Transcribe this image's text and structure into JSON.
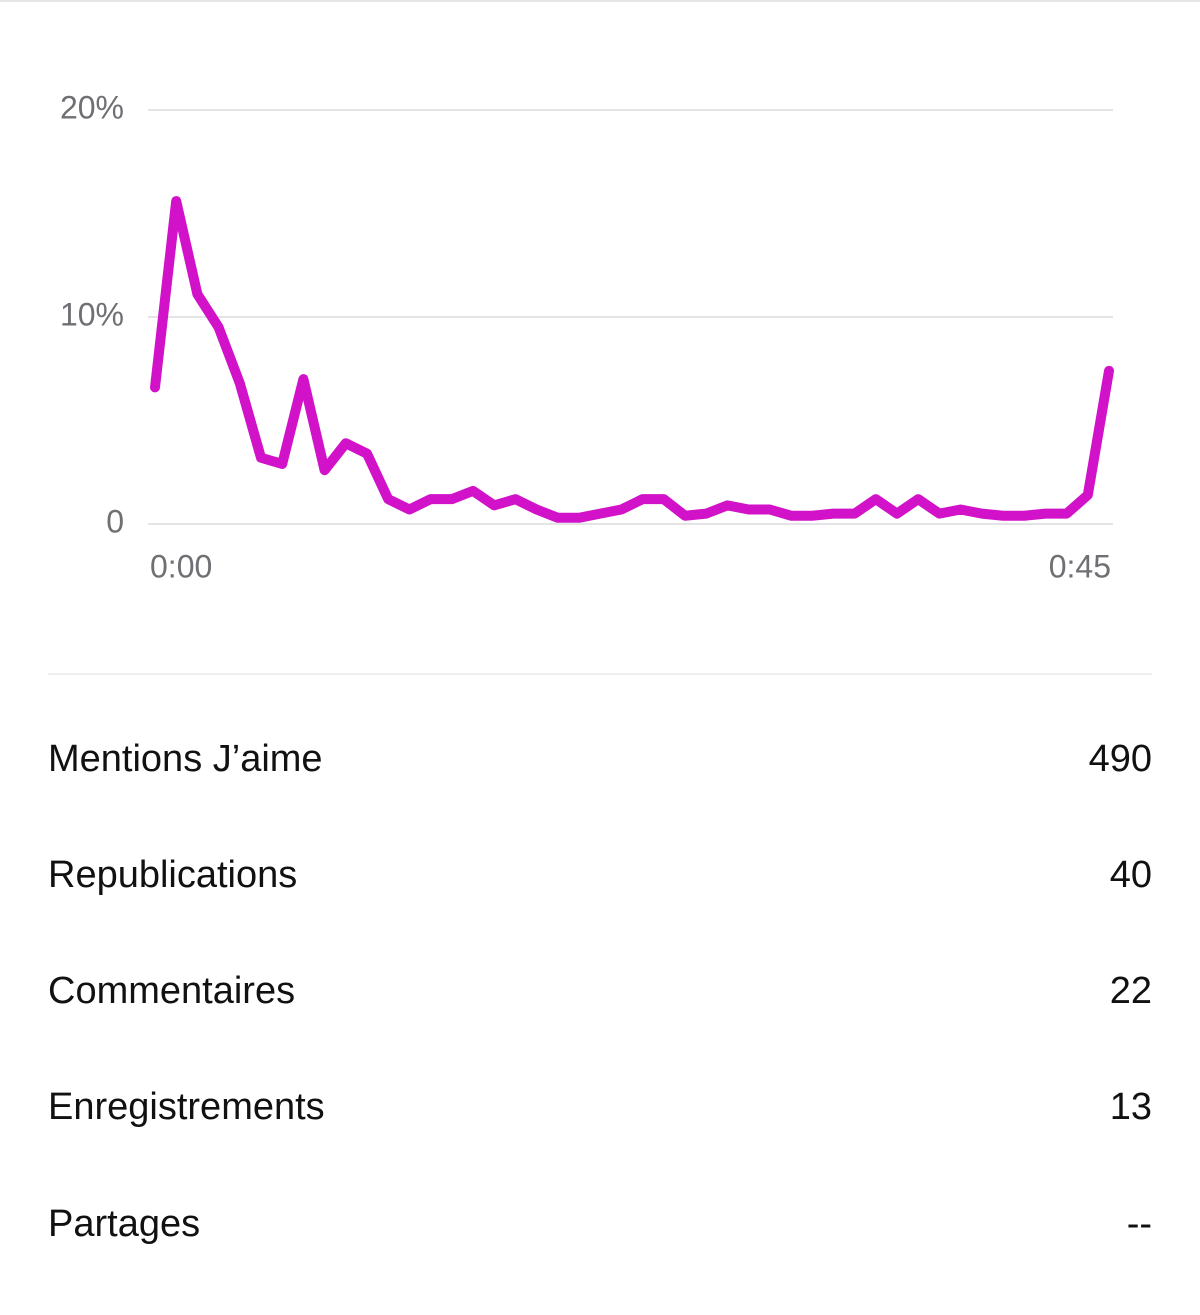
{
  "chart_data": {
    "type": "line",
    "color": "#d112c9",
    "x": [
      0,
      1,
      2,
      3,
      4,
      5,
      6,
      7,
      8,
      9,
      10,
      11,
      12,
      13,
      14,
      15,
      16,
      17,
      18,
      19,
      20,
      21,
      22,
      23,
      24,
      25,
      26,
      27,
      28,
      29,
      30,
      31,
      32,
      33,
      34,
      35,
      36,
      37,
      38,
      39,
      40,
      41,
      42,
      43,
      44,
      45
    ],
    "values": [
      6.6,
      15.6,
      11.1,
      9.5,
      6.8,
      3.2,
      2.9,
      7.0,
      2.6,
      3.9,
      3.4,
      1.2,
      0.7,
      1.2,
      1.2,
      1.6,
      0.9,
      1.2,
      0.7,
      0.3,
      0.3,
      0.5,
      0.7,
      1.2,
      1.2,
      0.4,
      0.5,
      0.9,
      0.7,
      0.7,
      0.4,
      0.4,
      0.5,
      0.5,
      1.2,
      0.5,
      1.2,
      0.5,
      0.7,
      0.5,
      0.4,
      0.4,
      0.5,
      0.5,
      1.4,
      7.4
    ],
    "xlim": [
      0,
      45
    ],
    "xticks": [
      {
        "value": 0,
        "label": "0:00"
      },
      {
        "value": 45,
        "label": "0:45"
      }
    ],
    "ylim": [
      0,
      20
    ],
    "yticks": [
      0,
      {
        "value": 10,
        "label": "10%"
      },
      {
        "value": 20,
        "label": "20%"
      }
    ],
    "grid": true
  },
  "metrics": [
    {
      "label": "Mentions J’aime",
      "value": 490
    },
    {
      "label": "Republications",
      "value": 40
    },
    {
      "label": "Commentaires",
      "value": 22
    },
    {
      "label": "Enregistrements",
      "value": 13
    },
    {
      "label": "Partages",
      "value": "--"
    }
  ]
}
